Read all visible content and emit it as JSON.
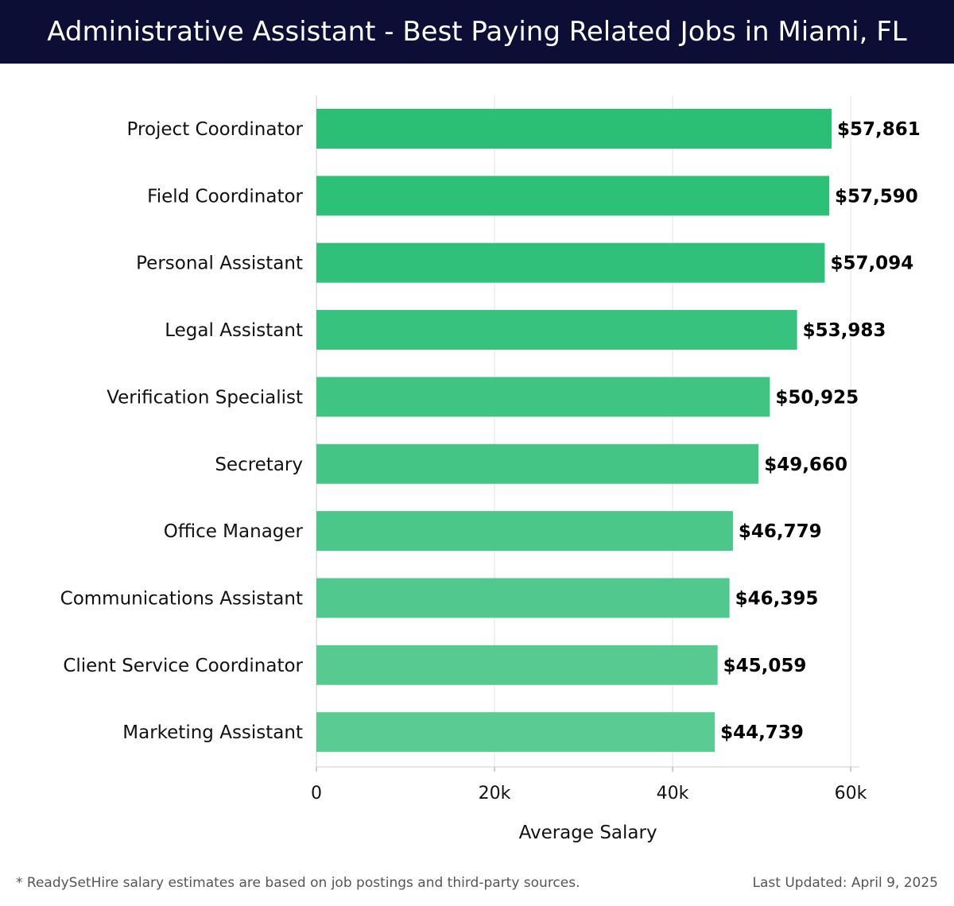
{
  "header": {
    "title": "Administrative Assistant - Best Paying Related Jobs in Miami, FL"
  },
  "chart_data": {
    "type": "bar",
    "orientation": "horizontal",
    "categories": [
      "Project Coordinator",
      "Field Coordinator",
      "Personal Assistant",
      "Legal Assistant",
      "Verification Specialist",
      "Secretary",
      "Office Manager",
      "Communications Assistant",
      "Client Service Coordinator",
      "Marketing Assistant"
    ],
    "values": [
      57861,
      57590,
      57094,
      53983,
      50925,
      49660,
      46779,
      46395,
      45059,
      44739
    ],
    "value_labels": [
      "$57,861",
      "$57,590",
      "$57,094",
      "$53,983",
      "$50,925",
      "$49,660",
      "$46,779",
      "$46,395",
      "$45,059",
      "$44,739"
    ],
    "bar_colors": [
      "#2bbf76",
      "#2dc077",
      "#30c079",
      "#37c27d",
      "#3fc482",
      "#44c585",
      "#4cc78a",
      "#51c88d",
      "#56ca90",
      "#5acb93"
    ],
    "xlabel": "Average Salary",
    "ylabel": "",
    "xlim": [
      0,
      61000
    ],
    "xticks": [
      0,
      20000,
      40000,
      60000
    ],
    "xtick_labels": [
      "0",
      "20k",
      "40k",
      "60k"
    ],
    "grid": true,
    "legend": "none"
  },
  "footer": {
    "note": "* ReadySetHire salary estimates are based on job postings and third-party sources.",
    "updated": "Last Updated: April 9, 2025"
  }
}
